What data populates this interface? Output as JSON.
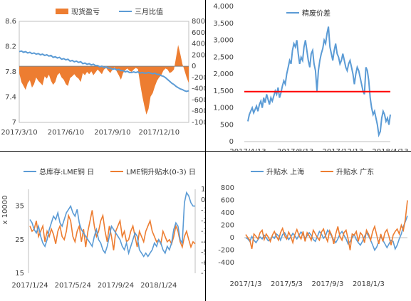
{
  "colors": {
    "orange": "#ED7D31",
    "blue": "#5B9BD5",
    "red": "#FF0000",
    "axis": "#BFBFBF",
    "text": "#404040"
  },
  "chart_data": [
    {
      "type": "area",
      "legend_placement": "top",
      "series": [
        {
          "name": "现货盈亏",
          "type": "area",
          "axis": "right",
          "color": "#ED7D31",
          "values": [
            -120,
            -280,
            -350,
            -420,
            -300,
            -250,
            -380,
            -320,
            -200,
            -260,
            -300,
            -340,
            -180,
            -220,
            -150,
            -260,
            -330,
            -280,
            -160,
            -120,
            -200,
            -240,
            -320,
            -350,
            -210,
            -180,
            -140,
            -190,
            -220,
            -280,
            -120,
            -160,
            -100,
            -140,
            -90,
            -160,
            -110,
            -60,
            -100,
            -140,
            -60,
            -30,
            -80,
            -120,
            -60,
            -20,
            -90,
            -160,
            -240,
            -120,
            -70,
            -40,
            -80,
            -100,
            -60,
            -30,
            -50,
            -300,
            -520,
            -700,
            -860,
            -760,
            -540,
            -480,
            -360,
            -260,
            -200,
            -160,
            -80,
            -40,
            -60,
            -120,
            -100,
            -60,
            160,
            380,
            220,
            40,
            -80,
            -200,
            -300
          ]
        },
        {
          "name": "三月比值",
          "type": "line",
          "axis": "left",
          "color": "#5B9BD5",
          "values": [
            8.12,
            8.13,
            8.11,
            8.12,
            8.1,
            8.11,
            8.09,
            8.1,
            8.08,
            8.09,
            8.07,
            8.08,
            8.06,
            8.07,
            8.05,
            8.06,
            8.03,
            8.04,
            8.02,
            8.03,
            8.0,
            8.01,
            7.99,
            8.0,
            7.97,
            7.98,
            7.96,
            7.97,
            7.95,
            7.96,
            7.93,
            7.94,
            7.92,
            7.93,
            7.91,
            7.92,
            7.9,
            7.9,
            7.88,
            7.89,
            7.87,
            7.88,
            7.86,
            7.86,
            7.84,
            7.85,
            7.83,
            7.84,
            7.82,
            7.82,
            7.8,
            7.81,
            7.79,
            7.79,
            7.8,
            7.79,
            7.8,
            7.78,
            7.79,
            7.78,
            7.78,
            7.79,
            7.78,
            7.77,
            7.78,
            7.76,
            7.76,
            7.74,
            7.73,
            7.71,
            7.68,
            7.65,
            7.62,
            7.6,
            7.57,
            7.55,
            7.53,
            7.52,
            7.5,
            7.49,
            7.5
          ]
        }
      ],
      "x_tick_labels": [
        "2017/3/10",
        "2017/6/10",
        "2017/9/10",
        "2017/12/10"
      ],
      "x_tick_positions": [
        0,
        22,
        44,
        66
      ],
      "y_left": {
        "ticks": [
          "7",
          "7.4",
          "7.8",
          "8.2",
          "8.6"
        ],
        "ylim": [
          7,
          8.6
        ]
      },
      "y_right": {
        "ticks": [
          "800",
          "600",
          "400",
          "200",
          "0",
          "-200",
          "-400",
          "-600",
          "-800",
          "-1000"
        ],
        "ylim": [
          -1000,
          800
        ]
      }
    },
    {
      "type": "line",
      "legend_placement": "top",
      "series": [
        {
          "name": "精废价差",
          "color": "#5B9BD5",
          "values": [
            600,
            800,
            900,
            1000,
            850,
            950,
            1050,
            900,
            1100,
            1200,
            1000,
            1300,
            1150,
            1400,
            1250,
            1100,
            1300,
            1200,
            1350,
            1500,
            1400,
            1600,
            1300,
            1450,
            1650,
            1800,
            1700,
            2000,
            2200,
            2400,
            2300,
            2700,
            2900,
            2800,
            3000,
            2600,
            2300,
            2500,
            2400,
            2800,
            3000,
            2700,
            2400,
            2200,
            2600,
            2700,
            2300,
            2100,
            1500,
            2100,
            2400,
            2600,
            2750,
            3000,
            2900,
            3200,
            3400,
            2800,
            2600,
            2400,
            2700,
            2900,
            2600,
            2500,
            2300,
            2400,
            2600,
            2400,
            2200,
            2100,
            2300,
            2400,
            2200,
            2000,
            1700,
            2000,
            2200,
            2100,
            1900,
            1700,
            1500,
            1400,
            2200,
            2100,
            1800,
            1300,
            1000,
            800,
            900,
            700,
            500,
            200,
            300,
            700,
            900,
            800,
            600,
            700,
            500,
            800
          ]
        },
        {
          "name": "",
          "color": "#FF0000",
          "values": [
            1480,
            1480
          ]
        }
      ],
      "x_tick_labels": [
        "2017/4/13",
        "2017/8/13",
        "2017/12/13",
        "2018/4/13"
      ],
      "x_tick_positions": [
        0,
        33,
        66,
        99
      ],
      "y_ticks": [
        "0",
        "500",
        "1,000",
        "1,500",
        "2,000",
        "2,500",
        "3,000",
        "3,500",
        "4,000"
      ],
      "ylim": [
        0,
        4000
      ]
    },
    {
      "type": "line",
      "legend_placement": "top",
      "ylabel": "x 10000",
      "series": [
        {
          "name": "总库存:LME铜 日",
          "axis": "left",
          "color": "#5B9BD5",
          "values": [
            31,
            30,
            28,
            27,
            29,
            26,
            24,
            23,
            25,
            28,
            30,
            32,
            31,
            33,
            30,
            29,
            31,
            33,
            34,
            35,
            33,
            32,
            34,
            30,
            28,
            27,
            26,
            25,
            24,
            23,
            26,
            28,
            25,
            24,
            22,
            21,
            23,
            26,
            29,
            28,
            27,
            26,
            25,
            23,
            22,
            24,
            21,
            23,
            25,
            27,
            26,
            22,
            21,
            20,
            21,
            20,
            21,
            22,
            24,
            23,
            25,
            24,
            22,
            21,
            23,
            22,
            24,
            28,
            30,
            29,
            25,
            24,
            36,
            39,
            38,
            36,
            35,
            35
          ]
        },
        {
          "name": "LME铜升贴水(0-3) 日",
          "axis": "right",
          "color": "#ED7D31",
          "values": [
            -25,
            -30,
            -28,
            -20,
            -35,
            -30,
            -25,
            -40,
            -30,
            -35,
            -28,
            -33,
            -42,
            -30,
            -25,
            -35,
            -38,
            -30,
            -15,
            -20,
            -35,
            -40,
            -30,
            -25,
            -40,
            -28,
            -45,
            -30,
            -20,
            -10,
            -25,
            -35,
            -30,
            -20,
            -15,
            -30,
            -40,
            -25,
            -35,
            -48,
            -30,
            -25,
            -20,
            -35,
            -30,
            -40,
            -38,
            -30,
            -25,
            -35,
            -45,
            -30,
            -35,
            -40,
            -30,
            -25,
            -20,
            -30,
            -35,
            -40,
            -38,
            -42,
            -30,
            -35,
            -40,
            -38,
            -42,
            -35,
            -25,
            -30,
            -40,
            -45,
            -35,
            -30,
            -38,
            -45,
            -40,
            -42
          ]
        }
      ],
      "x_tick_labels": [
        "2017/1/24",
        "2017/5/24",
        "2017/9/24",
        "2018/1/24"
      ],
      "x_tick_positions": [
        0,
        20,
        40,
        60
      ],
      "y_left": {
        "ticks": [
          "15",
          "25",
          "35"
        ],
        "ylim": [
          15,
          40
        ]
      },
      "y_right": {
        "ticks": [
          "10",
          "0",
          "-10",
          "-20",
          "-30",
          "-40",
          "-50",
          "-60",
          "-70"
        ],
        "ylim": [
          -70,
          10
        ]
      }
    },
    {
      "type": "line",
      "legend_placement": "top",
      "series": [
        {
          "name": "升贴水 上海",
          "color": "#5B9BD5",
          "values": [
            0,
            -20,
            -60,
            20,
            -40,
            -80,
            -30,
            10,
            -20,
            40,
            0,
            -50,
            -30,
            20,
            -10,
            60,
            30,
            -40,
            50,
            80,
            20,
            -30,
            10,
            70,
            30,
            -20,
            40,
            90,
            50,
            -10,
            30,
            80,
            40,
            -30,
            -60,
            20,
            100,
            60,
            -10,
            30,
            120,
            80,
            20,
            -40,
            -80,
            -20,
            60,
            100,
            40,
            -20,
            -100,
            -60,
            0,
            50,
            -30,
            -80,
            -120,
            -60,
            20,
            80,
            30,
            -40,
            -120,
            -200,
            -150,
            -60,
            20,
            -40,
            -100,
            -160,
            -100,
            -40,
            -60,
            -180,
            -120,
            -20,
            60,
            180,
            260,
            350
          ]
        },
        {
          "name": "升贴水 广东",
          "color": "#ED7D31",
          "values": [
            50,
            0,
            -40,
            -180,
            60,
            20,
            -20,
            80,
            120,
            -30,
            60,
            10,
            -60,
            40,
            100,
            20,
            -40,
            80,
            150,
            30,
            -20,
            90,
            20,
            -80,
            50,
            130,
            40,
            -20,
            100,
            -60,
            80,
            30,
            -40,
            120,
            60,
            0,
            -40,
            90,
            140,
            20,
            -60,
            110,
            40,
            -100,
            60,
            180,
            20,
            -40,
            80,
            120,
            -20,
            -200,
            60,
            40,
            100,
            -60,
            80,
            40,
            -80,
            120,
            60,
            -40,
            100,
            180,
            40,
            -100,
            60,
            -60,
            80,
            130,
            20,
            -120,
            40,
            100,
            140,
            60,
            200,
            120,
            300,
            600
          ]
        }
      ],
      "x_tick_labels": [
        "2017/1/3",
        "2017/5/3",
        "2017/9/3",
        "2018/1/3"
      ],
      "x_tick_positions": [
        0,
        20,
        40,
        60
      ],
      "y_ticks": [
        "800",
        "600",
        "400",
        "200",
        "0",
        "-200",
        "-400"
      ],
      "ylim": [
        -400,
        800
      ]
    }
  ]
}
